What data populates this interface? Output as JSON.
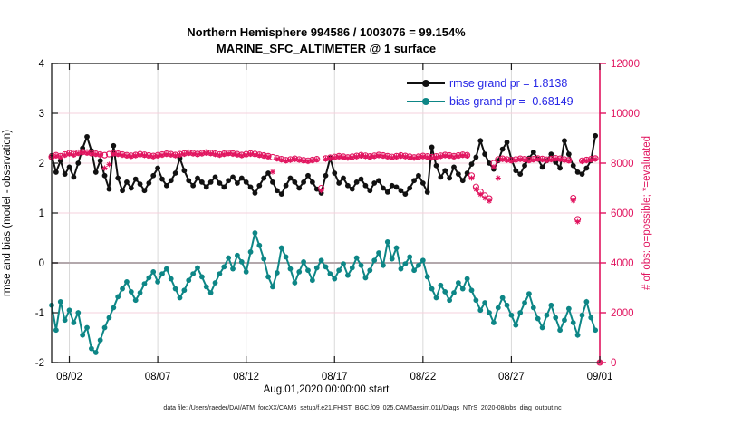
{
  "title": {
    "line1": "Northern Hemisphere 994586 / 1003076 = 99.154%",
    "line2": "MARINE_SFC_ALTIMETER @ 1 surface"
  },
  "legend": {
    "entries": [
      {
        "label": "rmse grand pr = 1.8138",
        "series": "rmse"
      },
      {
        "label": "bias grand pr = -0.68149",
        "series": "bias"
      }
    ],
    "text_color": "#2727e6"
  },
  "axes": {
    "ylabel_left": "rmse and bias (model - observation)",
    "ylabel_right": "# of obs: o=possible; *=evaluated",
    "xlabel": "Aug.01,2020 00:00:00 start",
    "x_tick_labels": [
      "08/02",
      "08/07",
      "08/12",
      "08/17",
      "08/22",
      "08/27",
      "09/01"
    ],
    "x_tick_days": [
      1,
      6,
      11,
      16,
      21,
      26,
      31
    ],
    "x_range_days": [
      0,
      31
    ],
    "y_left_tick_labels": [
      "4",
      "3",
      "2",
      "1",
      "0",
      "-1",
      "-2"
    ],
    "y_left_ticks": [
      4,
      3,
      2,
      1,
      0,
      -1,
      -2
    ],
    "y_left_range": [
      -2,
      4
    ],
    "y_right_tick_labels": [
      "12000",
      "10000",
      "8000",
      "6000",
      "4000",
      "2000",
      "0"
    ],
    "y_right_ticks": [
      12000,
      10000,
      8000,
      6000,
      4000,
      2000,
      0
    ],
    "y_right_range": [
      0,
      12000
    ]
  },
  "footer": "data file: /Users/raeder/DAI/ATM_forcXX/CAM6_setup/f.e21.FHIST_BGC.f09_025.CAM6assim.011/Diags_NTrS_2020-08/obs_diag_output.nc",
  "colors": {
    "rmse": "#111111",
    "bias": "#0d8686",
    "obs": "#e1145f",
    "grid_vertical": "#d9d9d9",
    "grid_horizontal": "#f6d0dc",
    "zero_line": "#b3a8ac",
    "axis_left": "#1a1a1a",
    "axis_right": "#e1145f"
  },
  "chart_data": {
    "type": "line",
    "title": "Northern Hemisphere 994586 / 1003076 = 99.154% | MARINE_SFC_ALTIMETER @ 1 surface",
    "x_start_day": 0,
    "x_step_days": 0.25,
    "x_axis_note": "days since Aug.01,2020 00:00:00",
    "grid": true,
    "legend_position": "top-right-inside",
    "series": [
      {
        "name": "rmse",
        "axis": "left",
        "grand_value": 1.8138,
        "values": [
          2.15,
          1.82,
          2.05,
          1.78,
          1.92,
          1.72,
          2.0,
          2.3,
          2.53,
          2.25,
          1.82,
          2.05,
          1.75,
          1.48,
          2.35,
          1.7,
          1.45,
          1.62,
          1.5,
          1.68,
          1.58,
          1.45,
          1.6,
          1.75,
          1.9,
          1.68,
          1.55,
          1.65,
          1.8,
          2.1,
          1.85,
          1.65,
          1.55,
          1.7,
          1.62,
          1.52,
          1.62,
          1.72,
          1.6,
          1.52,
          1.65,
          1.72,
          1.6,
          1.7,
          1.62,
          1.52,
          1.4,
          1.55,
          1.7,
          1.8,
          1.62,
          1.45,
          1.38,
          1.55,
          1.7,
          1.62,
          1.5,
          1.62,
          1.75,
          1.62,
          1.48,
          1.4,
          1.75,
          2.1,
          1.8,
          1.6,
          1.7,
          1.55,
          1.48,
          1.62,
          1.68,
          1.55,
          1.45,
          1.6,
          1.65,
          1.5,
          1.42,
          1.55,
          1.52,
          1.45,
          1.38,
          1.5,
          1.65,
          1.75,
          1.6,
          1.42,
          2.32,
          1.95,
          1.72,
          1.85,
          1.7,
          1.92,
          1.78,
          1.65,
          1.8,
          1.98,
          2.12,
          2.45,
          2.18,
          2.0,
          1.88,
          2.05,
          2.28,
          2.42,
          2.08,
          1.85,
          1.78,
          1.95,
          2.1,
          2.22,
          2.08,
          1.92,
          2.05,
          2.18,
          2.02,
          1.9,
          2.45,
          2.18,
          1.95,
          1.82,
          1.78,
          1.9,
          2.05,
          2.55,
          null
        ]
      },
      {
        "name": "bias",
        "axis": "left",
        "grand_value": -0.68149,
        "values": [
          -0.85,
          -1.35,
          -0.78,
          -1.15,
          -0.95,
          -1.2,
          -1.0,
          -1.45,
          -1.3,
          -1.72,
          -1.8,
          -1.55,
          -1.3,
          -1.1,
          -0.9,
          -0.68,
          -0.52,
          -0.38,
          -0.58,
          -0.75,
          -0.6,
          -0.42,
          -0.3,
          -0.18,
          -0.38,
          -0.22,
          -0.12,
          -0.32,
          -0.52,
          -0.7,
          -0.55,
          -0.35,
          -0.22,
          -0.1,
          -0.28,
          -0.48,
          -0.6,
          -0.4,
          -0.22,
          -0.08,
          0.1,
          -0.12,
          0.15,
          0.02,
          -0.18,
          0.22,
          0.6,
          0.35,
          0.08,
          -0.28,
          -0.48,
          -0.2,
          0.3,
          0.12,
          -0.12,
          -0.4,
          -0.18,
          0.02,
          -0.15,
          -0.35,
          -0.1,
          0.05,
          -0.08,
          -0.22,
          -0.32,
          -0.15,
          -0.02,
          -0.25,
          -0.1,
          0.1,
          -0.05,
          -0.3,
          -0.15,
          0.05,
          0.2,
          -0.05,
          0.42,
          0.08,
          0.3,
          -0.12,
          -0.02,
          0.12,
          -0.15,
          -0.05,
          0.05,
          -0.28,
          -0.52,
          -0.7,
          -0.45,
          -0.58,
          -0.75,
          -0.6,
          -0.4,
          -0.52,
          -0.32,
          -0.55,
          -0.75,
          -0.95,
          -0.8,
          -1.0,
          -1.2,
          -0.9,
          -0.7,
          -0.85,
          -1.05,
          -1.25,
          -1.0,
          -0.8,
          -0.62,
          -0.9,
          -1.12,
          -1.3,
          -1.05,
          -0.85,
          -1.1,
          -1.35,
          -1.15,
          -0.92,
          -1.2,
          -1.45,
          -1.05,
          -0.78,
          -1.1,
          -1.35,
          null
        ]
      },
      {
        "name": "obs_possible",
        "axis": "right",
        "marker": "circle",
        "values": [
          8250,
          8320,
          8280,
          8350,
          8400,
          8360,
          8420,
          8450,
          8430,
          8400,
          8380,
          8350,
          8320,
          8360,
          8400,
          8380,
          8350,
          8320,
          8300,
          8330,
          8360,
          8340,
          8310,
          8290,
          8320,
          8350,
          8380,
          8360,
          8330,
          8360,
          8390,
          8420,
          8400,
          8370,
          8400,
          8430,
          8410,
          8380,
          8350,
          8380,
          8410,
          8390,
          8360,
          8330,
          8360,
          8390,
          8370,
          8340,
          8310,
          8280,
          8240,
          8200,
          8160,
          8120,
          8150,
          8180,
          8150,
          8120,
          8100,
          8130,
          8160,
          7000,
          8190,
          8220,
          8250,
          8280,
          8260,
          8230,
          8260,
          8290,
          8320,
          8300,
          8270,
          8300,
          8330,
          8310,
          8280,
          8250,
          8280,
          8310,
          8290,
          8260,
          8230,
          8260,
          8290,
          8270,
          8240,
          8270,
          8300,
          8330,
          8310,
          8280,
          8310,
          8340,
          8320,
          7500,
          7050,
          6850,
          6700,
          6580,
          8000,
          8150,
          8180,
          8150,
          8120,
          8150,
          8180,
          8160,
          8130,
          8160,
          8190,
          8170,
          8140,
          8170,
          8200,
          8180,
          8150,
          8120,
          6600,
          5750,
          8100,
          8130,
          8160,
          8190,
          0
        ]
      },
      {
        "name": "obs_evaluated",
        "axis": "right",
        "marker": "asterisk",
        "values": [
          8220,
          8290,
          8250,
          8320,
          8370,
          8330,
          8390,
          8420,
          8400,
          8370,
          8350,
          8320,
          7800,
          7950,
          8370,
          8350,
          8320,
          8290,
          8270,
          8300,
          8330,
          8310,
          8280,
          8260,
          8290,
          8320,
          8350,
          8330,
          8300,
          8330,
          8360,
          8390,
          8370,
          8340,
          8370,
          8400,
          8380,
          8350,
          8320,
          8350,
          8380,
          8360,
          8330,
          8300,
          8330,
          8360,
          8340,
          8310,
          8280,
          8250,
          7650,
          8170,
          8130,
          8090,
          8120,
          8150,
          8120,
          8090,
          8070,
          8100,
          8130,
          6900,
          8160,
          8190,
          8220,
          8250,
          8230,
          8200,
          8230,
          8260,
          8290,
          8270,
          8240,
          8270,
          8300,
          8280,
          8250,
          8220,
          8250,
          8280,
          8260,
          8230,
          8200,
          8230,
          8260,
          8240,
          8210,
          8240,
          8270,
          8300,
          8280,
          8250,
          8280,
          8310,
          8290,
          7400,
          6950,
          6750,
          6600,
          6480,
          7850,
          7400,
          8150,
          8120,
          8090,
          8120,
          8150,
          8130,
          8100,
          8130,
          8160,
          8140,
          8110,
          8140,
          8170,
          8150,
          8120,
          8090,
          6500,
          5650,
          8070,
          8100,
          8130,
          8160,
          0
        ]
      }
    ]
  }
}
